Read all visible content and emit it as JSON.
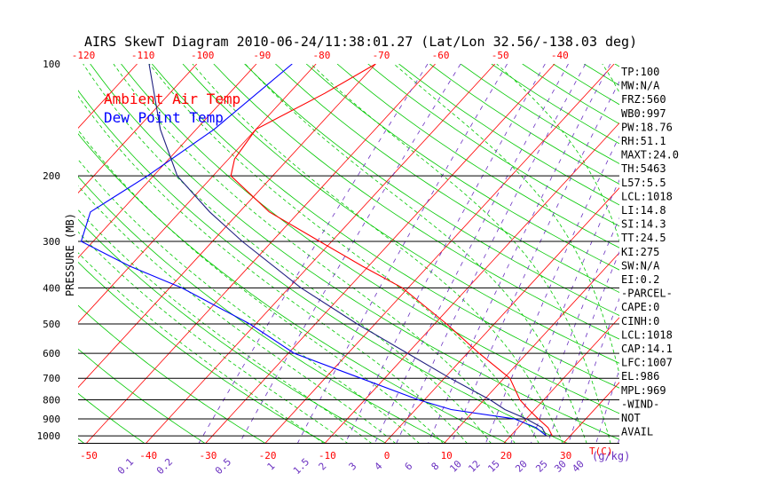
{
  "chart_data": {
    "type": "line",
    "title": "AIRS SkewT Diagram 2010-06-24/11:38:01.27 (Lat/Lon 32.56/-138.03 deg)",
    "ylabel": "PRESSURE (MB)",
    "xlabel_bottom_unit": "T(C)",
    "mixing_unit": "(g/kg)",
    "legend": {
      "placement": "top-left",
      "entries": [
        {
          "name": "Ambient Air Temp",
          "color": "#ff0000"
        },
        {
          "name": "Dew Point Temp",
          "color": "#0000ff"
        }
      ]
    },
    "y_ticks": [
      {
        "p": 100,
        "label": "100"
      },
      {
        "p": 200,
        "label": "200"
      },
      {
        "p": 300,
        "label": "300"
      },
      {
        "p": 400,
        "label": "400"
      },
      {
        "p": 500,
        "label": "500"
      },
      {
        "p": 600,
        "label": "600"
      },
      {
        "p": 700,
        "label": "700"
      },
      {
        "p": 800,
        "label": "800"
      },
      {
        "p": 900,
        "label": "900"
      },
      {
        "p": 1000,
        "label": "1000"
      }
    ],
    "top_ticks": [
      {
        "t": -120,
        "label": "-120"
      },
      {
        "t": -110,
        "label": "-110"
      },
      {
        "t": -100,
        "label": "-100"
      },
      {
        "t": -90,
        "label": "-90"
      },
      {
        "t": -80,
        "label": "-80"
      },
      {
        "t": -70,
        "label": "-70"
      },
      {
        "t": -60,
        "label": "-60"
      },
      {
        "t": -50,
        "label": "-50"
      },
      {
        "t": -40,
        "label": "-40"
      }
    ],
    "bottom_ticks": [
      {
        "t": -50,
        "label": "-50"
      },
      {
        "t": -40,
        "label": "-40"
      },
      {
        "t": -30,
        "label": "-30"
      },
      {
        "t": -20,
        "label": "-20"
      },
      {
        "t": -10,
        "label": "-10"
      },
      {
        "t": 0,
        "label": "0"
      },
      {
        "t": 10,
        "label": "10"
      },
      {
        "t": 20,
        "label": "20"
      },
      {
        "t": 30,
        "label": "30"
      }
    ],
    "mixing_ticks": [
      "0.1",
      "0.2",
      "0.5",
      "1",
      "1.5",
      "2",
      "3",
      "4",
      "6",
      "8",
      "10",
      "12",
      "15",
      "20",
      "25",
      "30",
      "40"
    ],
    "series": [
      {
        "name": "Ambient Air Temp",
        "color": "#ff0000",
        "points": [
          {
            "p": 100,
            "t": -70
          },
          {
            "p": 120,
            "t": -74
          },
          {
            "p": 150,
            "t": -80
          },
          {
            "p": 180,
            "t": -79
          },
          {
            "p": 200,
            "t": -77
          },
          {
            "p": 250,
            "t": -65
          },
          {
            "p": 300,
            "t": -52
          },
          {
            "p": 350,
            "t": -41
          },
          {
            "p": 400,
            "t": -31
          },
          {
            "p": 500,
            "t": -18
          },
          {
            "p": 600,
            "t": -8
          },
          {
            "p": 700,
            "t": 1
          },
          {
            "p": 800,
            "t": 6
          },
          {
            "p": 850,
            "t": 9
          },
          {
            "p": 900,
            "t": 12
          },
          {
            "p": 950,
            "t": 15
          },
          {
            "p": 1000,
            "t": 17
          }
        ]
      },
      {
        "name": "Dew Point Temp",
        "color": "#0000ff",
        "points": [
          {
            "p": 100,
            "t": -84
          },
          {
            "p": 150,
            "t": -87
          },
          {
            "p": 200,
            "t": -91
          },
          {
            "p": 250,
            "t": -95
          },
          {
            "p": 300,
            "t": -92
          },
          {
            "p": 350,
            "t": -80
          },
          {
            "p": 400,
            "t": -68
          },
          {
            "p": 500,
            "t": -51
          },
          {
            "p": 600,
            "t": -39
          },
          {
            "p": 700,
            "t": -24
          },
          {
            "p": 800,
            "t": -11
          },
          {
            "p": 850,
            "t": -4
          },
          {
            "p": 900,
            "t": 8
          },
          {
            "p": 950,
            "t": 13
          },
          {
            "p": 1000,
            "t": 16
          }
        ]
      },
      {
        "name": "",
        "color": "#202080",
        "points": [
          {
            "p": 100,
            "t": -108
          },
          {
            "p": 150,
            "t": -96
          },
          {
            "p": 200,
            "t": -86
          },
          {
            "p": 250,
            "t": -75
          },
          {
            "p": 300,
            "t": -65
          },
          {
            "p": 400,
            "t": -48
          },
          {
            "p": 500,
            "t": -33
          },
          {
            "p": 600,
            "t": -20
          },
          {
            "p": 700,
            "t": -9
          },
          {
            "p": 800,
            "t": 1
          },
          {
            "p": 850,
            "t": 5
          },
          {
            "p": 900,
            "t": 10
          },
          {
            "p": 950,
            "t": 14
          },
          {
            "p": 1000,
            "t": 16
          }
        ]
      }
    ],
    "indices": [
      "TP:100",
      "MW:N/A",
      "FRZ:560",
      "WB0:997",
      "PW:18.76",
      "RH:51.1",
      "MAXT:24.0",
      "TH:5463",
      "L57:5.5",
      "LCL:1018",
      "LI:14.8",
      "SI:14.3",
      "TT:24.5",
      "KI:275",
      "SW:N/A",
      "EI:0.2",
      "-PARCEL-",
      "CAPE:0",
      "CINH:0",
      "LCL:1018",
      "CAP:14.1",
      "LFC:1007",
      "EL:986",
      "MPL:969",
      "-WIND-",
      "NOT",
      "AVAIL"
    ],
    "colors": {
      "isobar": "#000000",
      "isotherm": "#ff0000",
      "dry_adiabat": "#00c800",
      "moist_adiabat": "#00c800",
      "mixing_ratio": "#6a30c0",
      "bottom_tick_label": "#ff0000",
      "top_tick_label": "#ff0000",
      "mixing_label": "#6a30c0"
    }
  }
}
